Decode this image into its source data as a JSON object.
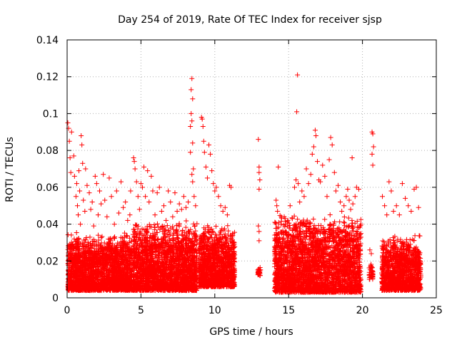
{
  "chart_data": {
    "type": "scatter",
    "title": "Day 254 of 2019, Rate Of TEC Index for receiver sjsp",
    "xlabel": "GPS time / hours",
    "ylabel": "ROTI / TECUs",
    "xlim": [
      0,
      25
    ],
    "ylim": [
      0,
      0.14
    ],
    "xticks": [
      0,
      5,
      10,
      15,
      20,
      25
    ],
    "xtick_labels": [
      "0",
      "5",
      "10",
      "15",
      "20",
      "25"
    ],
    "yticks": [
      0,
      0.02,
      0.04,
      0.06,
      0.08,
      0.1,
      0.12,
      0.14
    ],
    "ytick_labels": [
      "0",
      "0.02",
      "0.04",
      "0.06",
      "0.08",
      "0.1",
      "0.12",
      "0.14"
    ],
    "grid": true,
    "marker": "+",
    "marker_color": "#ff0000",
    "series": [
      {
        "name": "sjsp",
        "points": [
          [
            0.05,
            0.095
          ],
          [
            0.1,
            0.092
          ],
          [
            0.15,
            0.085
          ],
          [
            0.2,
            0.076
          ],
          [
            0.25,
            0.068
          ],
          [
            0.3,
            0.09
          ],
          [
            0.45,
            0.077
          ],
          [
            0.5,
            0.066
          ],
          [
            0.6,
            0.055
          ],
          [
            0.65,
            0.062
          ],
          [
            0.7,
            0.05
          ],
          [
            0.75,
            0.045
          ],
          [
            0.8,
            0.069
          ],
          [
            0.85,
            0.058
          ],
          [
            0.9,
            0.04
          ],
          [
            0.95,
            0.088
          ],
          [
            1.0,
            0.083
          ],
          [
            1.05,
            0.073
          ],
          [
            1.1,
            0.053
          ],
          [
            1.2,
            0.047
          ],
          [
            1.25,
            0.07
          ],
          [
            1.35,
            0.061
          ],
          [
            1.5,
            0.057
          ],
          [
            1.6,
            0.048
          ],
          [
            1.7,
            0.052
          ],
          [
            1.8,
            0.039
          ],
          [
            1.9,
            0.066
          ],
          [
            2.0,
            0.062
          ],
          [
            2.1,
            0.045
          ],
          [
            2.2,
            0.058
          ],
          [
            2.3,
            0.051
          ],
          [
            2.45,
            0.067
          ],
          [
            2.55,
            0.053
          ],
          [
            2.7,
            0.044
          ],
          [
            2.85,
            0.065
          ],
          [
            3.0,
            0.055
          ],
          [
            3.2,
            0.04
          ],
          [
            3.35,
            0.058
          ],
          [
            3.5,
            0.046
          ],
          [
            3.65,
            0.063
          ],
          [
            3.8,
            0.049
          ],
          [
            3.95,
            0.052
          ],
          [
            4.1,
            0.042
          ],
          [
            4.25,
            0.045
          ],
          [
            4.3,
            0.058
          ],
          [
            4.5,
            0.076
          ],
          [
            4.55,
            0.074
          ],
          [
            4.6,
            0.07
          ],
          [
            4.7,
            0.063
          ],
          [
            4.8,
            0.055
          ],
          [
            4.9,
            0.048
          ],
          [
            5.0,
            0.062
          ],
          [
            5.1,
            0.06
          ],
          [
            5.2,
            0.071
          ],
          [
            5.3,
            0.055
          ],
          [
            5.45,
            0.069
          ],
          [
            5.55,
            0.052
          ],
          [
            5.7,
            0.066
          ],
          [
            5.8,
            0.058
          ],
          [
            5.95,
            0.045
          ],
          [
            6.1,
            0.057
          ],
          [
            6.25,
            0.06
          ],
          [
            6.4,
            0.047
          ],
          [
            6.55,
            0.05
          ],
          [
            6.7,
            0.042
          ],
          [
            6.85,
            0.058
          ],
          [
            7.0,
            0.052
          ],
          [
            7.15,
            0.044
          ],
          [
            7.3,
            0.057
          ],
          [
            7.45,
            0.047
          ],
          [
            7.6,
            0.051
          ],
          [
            7.75,
            0.048
          ],
          [
            7.9,
            0.055
          ],
          [
            8.05,
            0.049
          ],
          [
            8.2,
            0.052
          ],
          [
            8.35,
            0.093
          ],
          [
            8.4,
            0.113
          ],
          [
            8.45,
            0.119
          ],
          [
            8.5,
            0.108
          ],
          [
            8.4,
            0.1
          ],
          [
            8.45,
            0.096
          ],
          [
            8.5,
            0.084
          ],
          [
            8.35,
            0.079
          ],
          [
            8.55,
            0.07
          ],
          [
            8.45,
            0.067
          ],
          [
            8.5,
            0.063
          ],
          [
            8.6,
            0.055
          ],
          [
            8.7,
            0.05
          ],
          [
            9.1,
            0.098
          ],
          [
            9.15,
            0.097
          ],
          [
            9.2,
            0.093
          ],
          [
            9.25,
            0.085
          ],
          [
            9.3,
            0.079
          ],
          [
            9.4,
            0.071
          ],
          [
            9.5,
            0.065
          ],
          [
            9.6,
            0.083
          ],
          [
            9.7,
            0.078
          ],
          [
            9.8,
            0.069
          ],
          [
            9.9,
            0.062
          ],
          [
            10.0,
            0.058
          ],
          [
            10.1,
            0.06
          ],
          [
            10.25,
            0.055
          ],
          [
            10.4,
            0.05
          ],
          [
            10.55,
            0.047
          ],
          [
            10.7,
            0.049
          ],
          [
            10.85,
            0.045
          ],
          [
            11.0,
            0.061
          ],
          [
            11.1,
            0.06
          ],
          [
            12.95,
            0.086
          ],
          [
            13.0,
            0.071
          ],
          [
            13.0,
            0.068
          ],
          [
            13.05,
            0.064
          ],
          [
            13.0,
            0.059
          ],
          [
            12.95,
            0.039
          ],
          [
            13.0,
            0.036
          ],
          [
            13.0,
            0.031
          ],
          [
            14.15,
            0.053
          ],
          [
            14.2,
            0.05
          ],
          [
            14.25,
            0.047
          ],
          [
            14.3,
            0.071
          ],
          [
            14.5,
            0.044
          ],
          [
            14.7,
            0.044
          ],
          [
            14.8,
            0.04
          ],
          [
            14.95,
            0.042
          ],
          [
            15.1,
            0.05
          ],
          [
            15.25,
            0.043
          ],
          [
            15.4,
            0.06
          ],
          [
            15.5,
            0.064
          ],
          [
            15.55,
            0.101
          ],
          [
            15.6,
            0.121
          ],
          [
            15.65,
            0.062
          ],
          [
            15.75,
            0.052
          ],
          [
            15.9,
            0.058
          ],
          [
            16.05,
            0.055
          ],
          [
            16.2,
            0.07
          ],
          [
            16.35,
            0.062
          ],
          [
            16.5,
            0.067
          ],
          [
            16.6,
            0.078
          ],
          [
            16.7,
            0.082
          ],
          [
            16.8,
            0.091
          ],
          [
            16.85,
            0.088
          ],
          [
            16.95,
            0.074
          ],
          [
            17.05,
            0.064
          ],
          [
            17.15,
            0.063
          ],
          [
            17.3,
            0.072
          ],
          [
            17.45,
            0.066
          ],
          [
            17.6,
            0.055
          ],
          [
            17.75,
            0.075
          ],
          [
            17.85,
            0.087
          ],
          [
            17.95,
            0.083
          ],
          [
            18.1,
            0.068
          ],
          [
            18.2,
            0.058
          ],
          [
            18.35,
            0.061
          ],
          [
            18.5,
            0.052
          ],
          [
            18.6,
            0.047
          ],
          [
            18.75,
            0.05
          ],
          [
            18.9,
            0.055
          ],
          [
            19.0,
            0.059
          ],
          [
            19.1,
            0.053
          ],
          [
            19.2,
            0.048
          ],
          [
            19.3,
            0.076
          ],
          [
            19.35,
            0.051
          ],
          [
            19.5,
            0.055
          ],
          [
            19.6,
            0.06
          ],
          [
            19.75,
            0.059
          ],
          [
            20.5,
            0.026
          ],
          [
            20.6,
            0.024
          ],
          [
            20.65,
            0.09
          ],
          [
            20.7,
            0.089
          ],
          [
            20.75,
            0.082
          ],
          [
            20.65,
            0.078
          ],
          [
            20.7,
            0.072
          ],
          [
            21.35,
            0.055
          ],
          [
            21.5,
            0.05
          ],
          [
            21.65,
            0.045
          ],
          [
            21.8,
            0.063
          ],
          [
            21.95,
            0.058
          ],
          [
            22.1,
            0.047
          ],
          [
            22.3,
            0.05
          ],
          [
            22.5,
            0.045
          ],
          [
            22.7,
            0.062
          ],
          [
            22.9,
            0.054
          ],
          [
            23.1,
            0.05
          ],
          [
            23.3,
            0.047
          ],
          [
            23.5,
            0.059
          ],
          [
            23.65,
            0.06
          ],
          [
            23.8,
            0.049
          ]
        ]
      }
    ],
    "dense_bands": [
      {
        "x_range": [
          0.05,
          4.4
        ],
        "y_range": [
          0.004,
          0.036
        ],
        "count": 2100
      },
      {
        "x_range": [
          4.45,
          8.8
        ],
        "y_range": [
          0.004,
          0.042
        ],
        "count": 2100
      },
      {
        "x_range": [
          8.9,
          11.35
        ],
        "y_range": [
          0.006,
          0.04
        ],
        "count": 1200
      },
      {
        "x_range": [
          12.9,
          13.1
        ],
        "y_range": [
          0.012,
          0.017
        ],
        "count": 25
      },
      {
        "x_range": [
          14.05,
          19.9
        ],
        "y_range": [
          0.003,
          0.046
        ],
        "count": 2700
      },
      {
        "x_range": [
          20.45,
          20.75
        ],
        "y_range": [
          0.01,
          0.022
        ],
        "count": 40
      },
      {
        "x_range": [
          21.3,
          23.95
        ],
        "y_range": [
          0.004,
          0.034
        ],
        "count": 1200
      }
    ]
  }
}
